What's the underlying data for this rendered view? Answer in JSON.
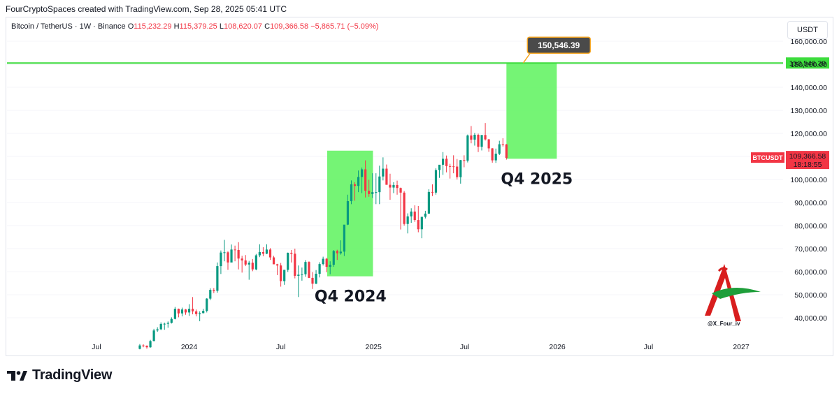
{
  "credit": "FourCryptoSpaces created with TradingView.com, Sep 28, 2025 05:41 UTC",
  "legend": {
    "symbol": "Bitcoin / TetherUS · 1W · Binance",
    "open_label": "O",
    "open": "115,232.29",
    "high_label": "H",
    "high": "115,379.25",
    "low_label": "L",
    "low": "108,620.07",
    "close_label": "C",
    "close": "109,366.58",
    "change": "−5,865.71 (−5.09%)"
  },
  "currency": "USDT",
  "colors": {
    "up": "#089981",
    "down": "#f23645",
    "zone": "#66f366",
    "target_line": "#3ddc3d",
    "callout": "#4a4a4a",
    "callout_border": "#f5a623",
    "price_badge": "#f23645"
  },
  "chart_data": {
    "type": "candlestick",
    "symbol": "BTCUSDT",
    "y_axis": {
      "ticks": [
        "40,000.00",
        "50,000.00",
        "60,000.00",
        "70,000.00",
        "80,000.00",
        "90,000.00",
        "100,000.00",
        "110,000.00",
        "120,000.00",
        "130,000.00",
        "140,000.00",
        "150,000.00",
        "160,000.00"
      ],
      "values": [
        40000,
        50000,
        60000,
        70000,
        80000,
        90000,
        100000,
        110000,
        120000,
        130000,
        140000,
        150000,
        160000
      ]
    },
    "x_axis": {
      "ticks": [
        "Jul",
        "2024",
        "Jul",
        "2025",
        "Jul",
        "2026",
        "Jul",
        "2027"
      ],
      "dates": [
        "2023-07-01",
        "2024-01-01",
        "2024-07-01",
        "2025-01-01",
        "2025-07-01",
        "2026-01-01",
        "2026-07-01",
        "2027-01-01"
      ]
    },
    "target": {
      "label": "150,546.39",
      "value": 150546.39,
      "callout": "150,546.39"
    },
    "last_price": {
      "symbol": "BTCUSDT",
      "value": "109,366.58",
      "countdown": "18:18:55",
      "numeric": 109366.58
    },
    "zones": [
      {
        "label": "Q4 2024",
        "start": "2024-10-01",
        "end": "2024-12-31",
        "low": 58000,
        "high": 112500
      },
      {
        "label": "Q4 2025",
        "start": "2025-09-22",
        "end": "2025-12-31",
        "low": 109000,
        "high": 150546.39
      }
    ],
    "candles": [
      {
        "t": "2023-09-25",
        "o": 26500,
        "h": 28600,
        "c": 28000,
        "l": 26300
      },
      {
        "t": "2023-10-02",
        "o": 28000,
        "h": 28500,
        "c": 27900,
        "l": 27200
      },
      {
        "t": "2023-10-09",
        "o": 27900,
        "h": 28000,
        "c": 27200,
        "l": 26600
      },
      {
        "t": "2023-10-16",
        "o": 27200,
        "h": 30400,
        "c": 29900,
        "l": 27000
      },
      {
        "t": "2023-10-23",
        "o": 29900,
        "h": 35200,
        "c": 34500,
        "l": 29800
      },
      {
        "t": "2023-10-30",
        "o": 34500,
        "h": 35900,
        "c": 35000,
        "l": 33900
      },
      {
        "t": "2023-11-06",
        "o": 35000,
        "h": 38000,
        "c": 37300,
        "l": 34700
      },
      {
        "t": "2023-11-13",
        "o": 37300,
        "h": 37900,
        "c": 37400,
        "l": 34800
      },
      {
        "t": "2023-11-20",
        "o": 37400,
        "h": 38400,
        "c": 37800,
        "l": 35700
      },
      {
        "t": "2023-11-27",
        "o": 37800,
        "h": 40200,
        "c": 39500,
        "l": 37500
      },
      {
        "t": "2023-12-04",
        "o": 39500,
        "h": 44700,
        "c": 43900,
        "l": 39300
      },
      {
        "t": "2023-12-11",
        "o": 43900,
        "h": 44000,
        "c": 41900,
        "l": 40200
      },
      {
        "t": "2023-12-18",
        "o": 41900,
        "h": 44400,
        "c": 43600,
        "l": 40600
      },
      {
        "t": "2023-12-25",
        "o": 43600,
        "h": 43800,
        "c": 42300,
        "l": 41300
      },
      {
        "t": "2024-01-01",
        "o": 42300,
        "h": 45900,
        "c": 43900,
        "l": 40800
      },
      {
        "t": "2024-01-08",
        "o": 43900,
        "h": 49000,
        "c": 42800,
        "l": 41500
      },
      {
        "t": "2024-01-15",
        "o": 42800,
        "h": 43600,
        "c": 41600,
        "l": 40600
      },
      {
        "t": "2024-01-22",
        "o": 41600,
        "h": 42800,
        "c": 42000,
        "l": 38500
      },
      {
        "t": "2024-01-29",
        "o": 42000,
        "h": 43900,
        "c": 43000,
        "l": 41900
      },
      {
        "t": "2024-02-05",
        "o": 43000,
        "h": 48500,
        "c": 48300,
        "l": 42300
      },
      {
        "t": "2024-02-12",
        "o": 48300,
        "h": 52800,
        "c": 52100,
        "l": 47700
      },
      {
        "t": "2024-02-19",
        "o": 52100,
        "h": 52900,
        "c": 51700,
        "l": 50700
      },
      {
        "t": "2024-02-26",
        "o": 51700,
        "h": 64000,
        "c": 62400,
        "l": 50900
      },
      {
        "t": "2024-03-04",
        "o": 62400,
        "h": 69200,
        "c": 68300,
        "l": 59000
      },
      {
        "t": "2024-03-11",
        "o": 68300,
        "h": 73800,
        "c": 68400,
        "l": 64500
      },
      {
        "t": "2024-03-18",
        "o": 68400,
        "h": 68900,
        "c": 64000,
        "l": 60800
      },
      {
        "t": "2024-03-25",
        "o": 64000,
        "h": 71800,
        "c": 69600,
        "l": 64300
      },
      {
        "t": "2024-04-01",
        "o": 69600,
        "h": 71300,
        "c": 69400,
        "l": 64500
      },
      {
        "t": "2024-04-08",
        "o": 69400,
        "h": 72800,
        "c": 65700,
        "l": 61000
      },
      {
        "t": "2024-04-15",
        "o": 65700,
        "h": 66900,
        "c": 64900,
        "l": 59600
      },
      {
        "t": "2024-04-22",
        "o": 64900,
        "h": 67200,
        "c": 63100,
        "l": 62400
      },
      {
        "t": "2024-04-29",
        "o": 63100,
        "h": 64700,
        "c": 63900,
        "l": 56500
      },
      {
        "t": "2024-05-06",
        "o": 63900,
        "h": 65500,
        "c": 61000,
        "l": 60200
      },
      {
        "t": "2024-05-13",
        "o": 61000,
        "h": 67700,
        "c": 67100,
        "l": 60600
      },
      {
        "t": "2024-05-20",
        "o": 67100,
        "h": 71900,
        "c": 68500,
        "l": 66300
      },
      {
        "t": "2024-05-27",
        "o": 68500,
        "h": 70600,
        "c": 67800,
        "l": 66700
      },
      {
        "t": "2024-06-03",
        "o": 67800,
        "h": 71900,
        "c": 69600,
        "l": 67600
      },
      {
        "t": "2024-06-10",
        "o": 69600,
        "h": 70200,
        "c": 66200,
        "l": 65100
      },
      {
        "t": "2024-06-17",
        "o": 66200,
        "h": 66900,
        "c": 63200,
        "l": 63400
      },
      {
        "t": "2024-06-24",
        "o": 63200,
        "h": 63400,
        "c": 62700,
        "l": 58500
      },
      {
        "t": "2024-07-01",
        "o": 62700,
        "h": 63800,
        "c": 55900,
        "l": 53500
      },
      {
        "t": "2024-07-08",
        "o": 55900,
        "h": 60800,
        "c": 60800,
        "l": 54300
      },
      {
        "t": "2024-07-15",
        "o": 60800,
        "h": 68300,
        "c": 68200,
        "l": 59900
      },
      {
        "t": "2024-07-22",
        "o": 68200,
        "h": 69400,
        "c": 67800,
        "l": 64000
      },
      {
        "t": "2024-07-29",
        "o": 67800,
        "h": 70000,
        "c": 58200,
        "l": 57100
      },
      {
        "t": "2024-08-05",
        "o": 58200,
        "h": 62700,
        "c": 58700,
        "l": 49000
      },
      {
        "t": "2024-08-12",
        "o": 58700,
        "h": 61800,
        "c": 58900,
        "l": 56100
      },
      {
        "t": "2024-08-19",
        "o": 58900,
        "h": 65000,
        "c": 64200,
        "l": 57800
      },
      {
        "t": "2024-08-26",
        "o": 64200,
        "h": 64500,
        "c": 57300,
        "l": 57200
      },
      {
        "t": "2024-09-02",
        "o": 57300,
        "h": 59800,
        "c": 54800,
        "l": 52500
      },
      {
        "t": "2024-09-09",
        "o": 54800,
        "h": 60700,
        "c": 59100,
        "l": 54600
      },
      {
        "t": "2024-09-16",
        "o": 59100,
        "h": 64100,
        "c": 63300,
        "l": 57500
      },
      {
        "t": "2024-09-23",
        "o": 63300,
        "h": 66500,
        "c": 65600,
        "l": 62700
      },
      {
        "t": "2024-09-30",
        "o": 65600,
        "h": 66000,
        "c": 62100,
        "l": 59800
      },
      {
        "t": "2024-10-07",
        "o": 62100,
        "h": 64500,
        "c": 63000,
        "l": 58900
      },
      {
        "t": "2024-10-14",
        "o": 63000,
        "h": 69400,
        "c": 69000,
        "l": 62100
      },
      {
        "t": "2024-10-21",
        "o": 69000,
        "h": 69500,
        "c": 68000,
        "l": 65100
      },
      {
        "t": "2024-10-28",
        "o": 68000,
        "h": 73600,
        "c": 68700,
        "l": 67400
      },
      {
        "t": "2024-11-04",
        "o": 68700,
        "h": 80300,
        "c": 80400,
        "l": 66800
      },
      {
        "t": "2024-11-11",
        "o": 80400,
        "h": 93400,
        "c": 90600,
        "l": 80200
      },
      {
        "t": "2024-11-18",
        "o": 90600,
        "h": 99600,
        "c": 97900,
        "l": 89300
      },
      {
        "t": "2024-11-25",
        "o": 97900,
        "h": 98800,
        "c": 97200,
        "l": 90800
      },
      {
        "t": "2024-12-02",
        "o": 97200,
        "h": 103900,
        "c": 101100,
        "l": 94500
      },
      {
        "t": "2024-12-09",
        "o": 101100,
        "h": 105200,
        "c": 104400,
        "l": 94100
      },
      {
        "t": "2024-12-16",
        "o": 104400,
        "h": 108300,
        "c": 95100,
        "l": 92200
      },
      {
        "t": "2024-12-23",
        "o": 95100,
        "h": 99900,
        "c": 93700,
        "l": 92500
      },
      {
        "t": "2024-12-30",
        "o": 93700,
        "h": 102700,
        "c": 94500,
        "l": 92000
      },
      {
        "t": "2025-01-06",
        "o": 94500,
        "h": 102700,
        "c": 94500,
        "l": 89300
      },
      {
        "t": "2025-01-13",
        "o": 94500,
        "h": 106000,
        "c": 101300,
        "l": 89300
      },
      {
        "t": "2025-01-20",
        "o": 101300,
        "h": 109600,
        "c": 104700,
        "l": 99600
      },
      {
        "t": "2025-01-27",
        "o": 104700,
        "h": 106500,
        "c": 97700,
        "l": 97700
      },
      {
        "t": "2025-02-03",
        "o": 97700,
        "h": 102500,
        "c": 96500,
        "l": 91200
      },
      {
        "t": "2025-02-10",
        "o": 96500,
        "h": 98800,
        "c": 97600,
        "l": 94100
      },
      {
        "t": "2025-02-17",
        "o": 97600,
        "h": 99500,
        "c": 96300,
        "l": 93400
      },
      {
        "t": "2025-02-24",
        "o": 96300,
        "h": 96500,
        "c": 94300,
        "l": 78300
      },
      {
        "t": "2025-03-03",
        "o": 94300,
        "h": 95000,
        "c": 80700,
        "l": 80000
      },
      {
        "t": "2025-03-10",
        "o": 80700,
        "h": 85300,
        "c": 84000,
        "l": 76600
      },
      {
        "t": "2025-03-17",
        "o": 84000,
        "h": 87500,
        "c": 86100,
        "l": 81200
      },
      {
        "t": "2025-03-24",
        "o": 86100,
        "h": 88800,
        "c": 82400,
        "l": 81600
      },
      {
        "t": "2025-03-31",
        "o": 82400,
        "h": 88500,
        "c": 78400,
        "l": 77100
      },
      {
        "t": "2025-04-07",
        "o": 78400,
        "h": 83500,
        "c": 83800,
        "l": 74500
      },
      {
        "t": "2025-04-14",
        "o": 83800,
        "h": 86400,
        "c": 85200,
        "l": 83100
      },
      {
        "t": "2025-04-21",
        "o": 85200,
        "h": 95800,
        "c": 94600,
        "l": 85100
      },
      {
        "t": "2025-04-28",
        "o": 94600,
        "h": 97900,
        "c": 94300,
        "l": 92800
      },
      {
        "t": "2025-05-05",
        "o": 94300,
        "h": 104900,
        "c": 104100,
        "l": 93400
      },
      {
        "t": "2025-05-12",
        "o": 104100,
        "h": 105800,
        "c": 106400,
        "l": 100700
      },
      {
        "t": "2025-05-19",
        "o": 106400,
        "h": 111900,
        "c": 109000,
        "l": 102000
      },
      {
        "t": "2025-05-26",
        "o": 109000,
        "h": 110400,
        "c": 105800,
        "l": 103100
      },
      {
        "t": "2025-06-02",
        "o": 105800,
        "h": 106800,
        "c": 105700,
        "l": 100400
      },
      {
        "t": "2025-06-09",
        "o": 105700,
        "h": 110500,
        "c": 105600,
        "l": 102700
      },
      {
        "t": "2025-06-16",
        "o": 105600,
        "h": 108900,
        "c": 101000,
        "l": 100000
      },
      {
        "t": "2025-06-23",
        "o": 101000,
        "h": 108500,
        "c": 108400,
        "l": 98200
      },
      {
        "t": "2025-06-30",
        "o": 108400,
        "h": 110500,
        "c": 108200,
        "l": 105300
      },
      {
        "t": "2025-07-07",
        "o": 108200,
        "h": 119500,
        "c": 119100,
        "l": 107400
      },
      {
        "t": "2025-07-14",
        "o": 119100,
        "h": 123200,
        "c": 117300,
        "l": 115700
      },
      {
        "t": "2025-07-21",
        "o": 117300,
        "h": 120200,
        "c": 119400,
        "l": 114700
      },
      {
        "t": "2025-07-28",
        "o": 119400,
        "h": 119900,
        "c": 114200,
        "l": 111900
      },
      {
        "t": "2025-08-04",
        "o": 114200,
        "h": 119300,
        "c": 119300,
        "l": 112600
      },
      {
        "t": "2025-08-11",
        "o": 119300,
        "h": 124500,
        "c": 117400,
        "l": 116900
      },
      {
        "t": "2025-08-18",
        "o": 117400,
        "h": 117600,
        "c": 113500,
        "l": 112000
      },
      {
        "t": "2025-08-25",
        "o": 113500,
        "h": 113600,
        "c": 108300,
        "l": 107300
      },
      {
        "t": "2025-09-01",
        "o": 108300,
        "h": 113400,
        "c": 111200,
        "l": 107200
      },
      {
        "t": "2025-09-08",
        "o": 111200,
        "h": 116800,
        "c": 115300,
        "l": 110600
      },
      {
        "t": "2025-09-15",
        "o": 115300,
        "h": 117900,
        "c": 115200,
        "l": 114300
      },
      {
        "t": "2025-09-22",
        "o": 115232.29,
        "h": 115379.25,
        "c": 109366.58,
        "l": 108620.07
      }
    ]
  },
  "watermark": {
    "handle": "@X_Four_iv"
  },
  "footer": {
    "brand": "TradingView"
  }
}
